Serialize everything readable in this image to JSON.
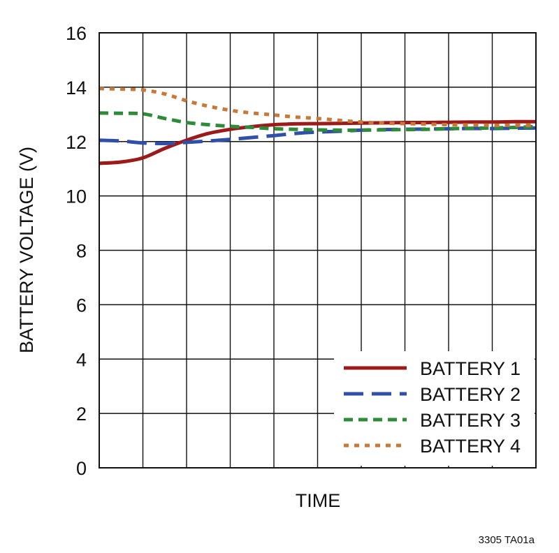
{
  "chart_data": {
    "type": "line",
    "xlabel": "TIME",
    "ylabel": "BATTERY VOLTAGE (V)",
    "ylim": [
      0,
      16
    ],
    "yticks": [
      "0",
      "2",
      "4",
      "6",
      "8",
      "10",
      "12",
      "14",
      "16"
    ],
    "x_gridlines": 10,
    "grid": true,
    "legend_position": "bottom-right",
    "figure_ref": "3305 TA01a",
    "x": [
      0,
      0.5,
      1,
      1.5,
      2,
      2.5,
      3,
      3.5,
      4,
      4.5,
      5,
      5.5,
      6,
      6.5,
      7,
      7.5,
      8,
      8.5,
      9,
      9.5,
      10
    ],
    "series": [
      {
        "name": "BATTERY 1",
        "color": "#9B1B1B",
        "style": "solid",
        "values": [
          11.2,
          11.25,
          11.4,
          11.75,
          12.05,
          12.3,
          12.45,
          12.55,
          12.62,
          12.65,
          12.66,
          12.67,
          12.68,
          12.69,
          12.7,
          12.7,
          12.71,
          12.72,
          12.72,
          12.73,
          12.73
        ]
      },
      {
        "name": "BATTERY 2",
        "color": "#2F4FA8",
        "style": "long-dash",
        "values": [
          12.05,
          12.02,
          11.95,
          11.93,
          11.97,
          12.02,
          12.08,
          12.15,
          12.22,
          12.3,
          12.35,
          12.38,
          12.42,
          12.44,
          12.45,
          12.46,
          12.47,
          12.48,
          12.48,
          12.49,
          12.5
        ]
      },
      {
        "name": "BATTERY 3",
        "color": "#2E8B3A",
        "style": "short-dash",
        "values": [
          13.05,
          13.04,
          13.02,
          12.85,
          12.7,
          12.62,
          12.56,
          12.52,
          12.47,
          12.45,
          12.43,
          12.42,
          12.42,
          12.43,
          12.44,
          12.45,
          12.47,
          12.49,
          12.5,
          12.52,
          12.55
        ]
      },
      {
        "name": "BATTERY 4",
        "color": "#C8793A",
        "style": "dotted",
        "values": [
          13.95,
          13.93,
          13.9,
          13.75,
          13.5,
          13.3,
          13.15,
          13.05,
          12.98,
          12.9,
          12.85,
          12.78,
          12.72,
          12.68,
          12.66,
          12.64,
          12.62,
          12.61,
          12.6,
          12.6,
          12.6
        ]
      }
    ]
  }
}
